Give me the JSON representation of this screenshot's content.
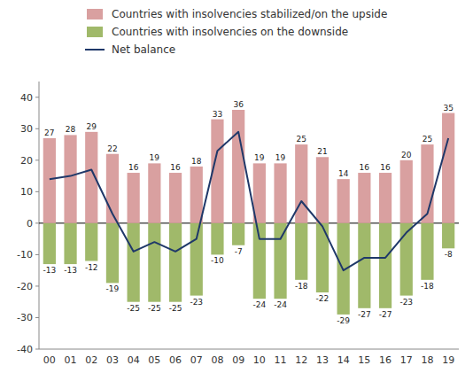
{
  "chart_data": {
    "type": "bar",
    "stacked": true,
    "categories": [
      "00",
      "01",
      "02",
      "03",
      "04",
      "05",
      "06",
      "07",
      "08",
      "09",
      "10",
      "11",
      "12",
      "13",
      "14",
      "15",
      "16",
      "17",
      "18",
      "19"
    ],
    "series": [
      {
        "name": "Countries with insolvencies stabilized/on the upside",
        "type": "bar",
        "color": "#d9a0a0",
        "data_labels": true,
        "values": [
          27,
          28,
          29,
          22,
          16,
          19,
          16,
          18,
          33,
          36,
          19,
          19,
          25,
          21,
          14,
          16,
          16,
          20,
          25,
          35
        ]
      },
      {
        "name": "Countries with insolvencies on the downside",
        "type": "bar",
        "color": "#a0b96a",
        "data_labels": true,
        "values": [
          -13,
          -13,
          -12,
          -19,
          -25,
          -25,
          -25,
          -23,
          -10,
          -7,
          -24,
          -24,
          -18,
          -22,
          -29,
          -27,
          -27,
          -23,
          -18,
          -8
        ]
      },
      {
        "name": "Net balance",
        "type": "line",
        "color": "#1f3869",
        "values": [
          14,
          15,
          17,
          3,
          -9,
          -6,
          -9,
          -5,
          23,
          29,
          -5,
          -5,
          7,
          -1,
          -15,
          -11,
          -11,
          -3,
          3,
          27
        ]
      }
    ],
    "ylim": [
      -40,
      45
    ],
    "yticks": [
      -40,
      -30,
      -20,
      -10,
      0,
      10,
      20,
      30,
      40
    ],
    "grid": false,
    "legend": "top"
  }
}
